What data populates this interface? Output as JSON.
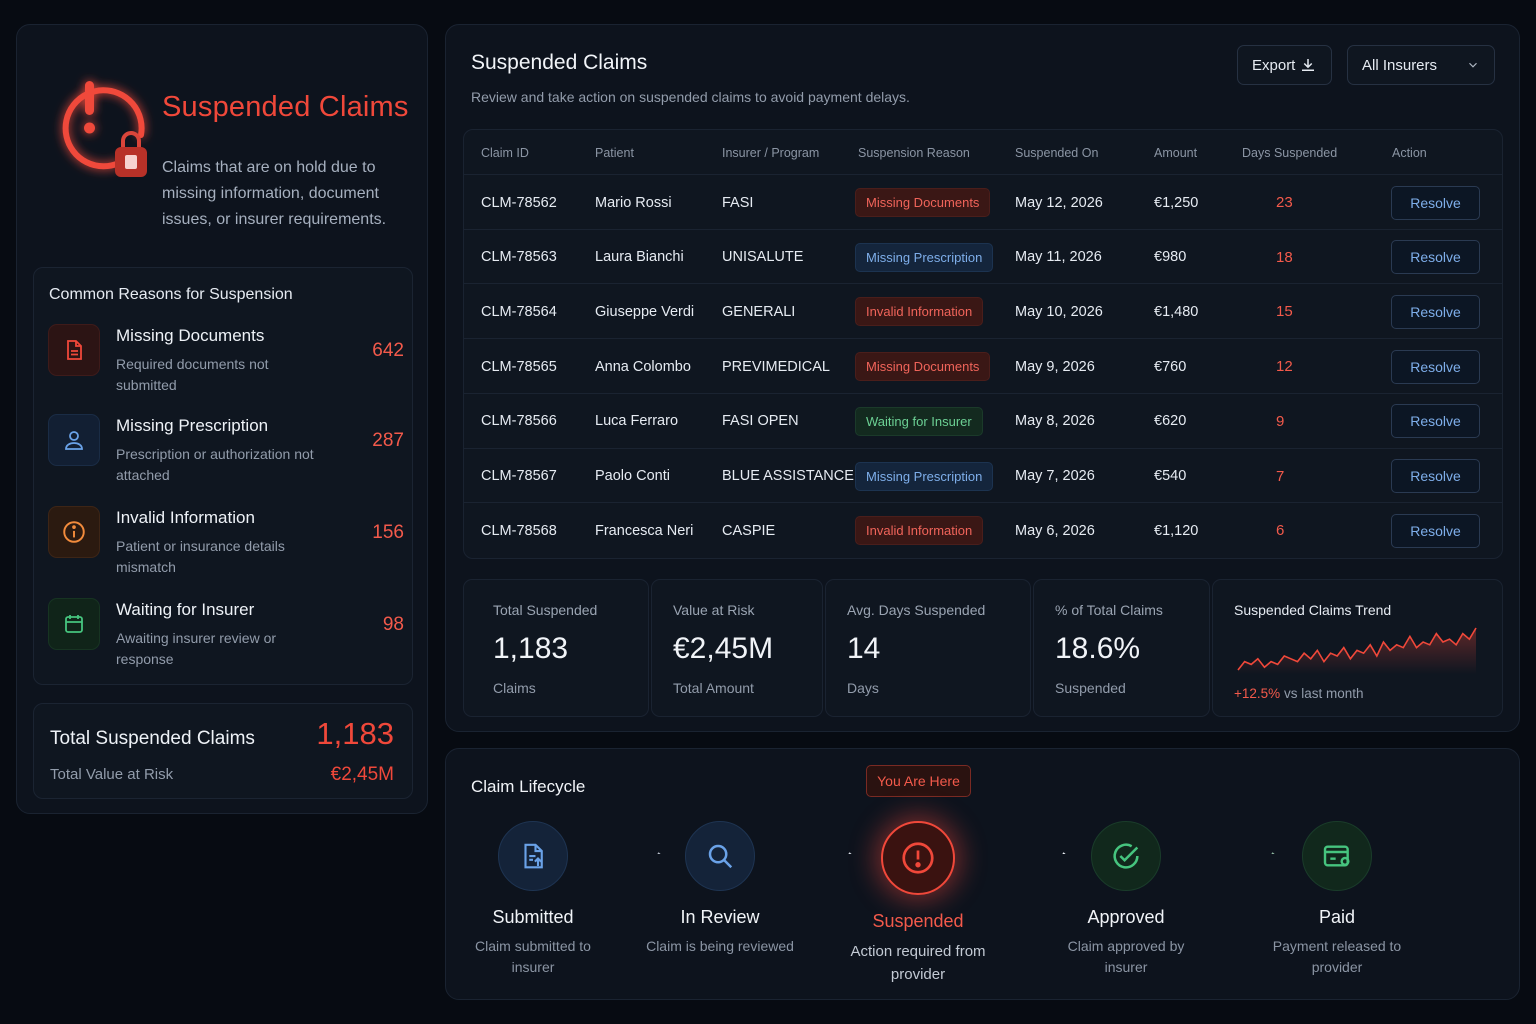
{
  "sidebar": {
    "title": "Suspended Claims",
    "description": "Claims that are on hold due to missing information, document issues, or insurer requirements.",
    "reasons_title": "Common Reasons for Suspension",
    "reasons": [
      {
        "name": "Missing Documents",
        "desc": "Required documents not submitted",
        "count": "642",
        "icon": "document-icon",
        "color": "#f0483a"
      },
      {
        "name": "Missing Prescription",
        "desc": "Prescription or authorization not attached",
        "count": "287",
        "icon": "user-icon",
        "color": "#6aa2e8"
      },
      {
        "name": "Invalid Information",
        "desc": "Patient or insurance details mismatch",
        "count": "156",
        "icon": "info-icon",
        "color": "#f28b3c"
      },
      {
        "name": "Waiting for Insurer",
        "desc": "Awaiting insurer review or response",
        "count": "98",
        "icon": "calendar-icon",
        "color": "#46c47e"
      }
    ],
    "total": {
      "label": "Total Suspended Claims",
      "value": "1,183",
      "value_label": "Total Value at Risk",
      "value_amount": "€2,45M"
    }
  },
  "main": {
    "title": "Suspended Claims",
    "subtitle": "Review and take action on suspended claims to avoid payment delays.",
    "export_label": "Export",
    "insurer_filter": "All Insurers",
    "columns": [
      "Claim ID",
      "Patient",
      "Insurer / Program",
      "Suspension Reason",
      "Suspended On",
      "Amount",
      "Days Suspended",
      "Action"
    ],
    "rows": [
      {
        "id": "CLM-78562",
        "patient": "Mario Rossi",
        "insurer": "FASI",
        "reason": "Missing Documents",
        "reason_type": "red",
        "date": "May 12, 2026",
        "amount": "€1,250",
        "days": "23",
        "action": "Resolve"
      },
      {
        "id": "CLM-78563",
        "patient": "Laura Bianchi",
        "insurer": "UNISALUTE",
        "reason": "Missing Prescription",
        "reason_type": "blue",
        "date": "May 11, 2026",
        "amount": "€980",
        "days": "18",
        "action": "Resolve"
      },
      {
        "id": "CLM-78564",
        "patient": "Giuseppe Verdi",
        "insurer": "GENERALI",
        "reason": "Invalid Information",
        "reason_type": "red",
        "date": "May 10, 2026",
        "amount": "€1,480",
        "days": "15",
        "action": "Resolve"
      },
      {
        "id": "CLM-78565",
        "patient": "Anna Colombo",
        "insurer": "PREVIMEDICAL",
        "reason": "Missing Documents",
        "reason_type": "red",
        "date": "May 9, 2026",
        "amount": "€760",
        "days": "12",
        "action": "Resolve"
      },
      {
        "id": "CLM-78566",
        "patient": "Luca Ferraro",
        "insurer": "FASI OPEN",
        "reason": "Waiting for Insurer",
        "reason_type": "green",
        "date": "May 8, 2026",
        "amount": "€620",
        "days": "9",
        "action": "Resolve"
      },
      {
        "id": "CLM-78567",
        "patient": "Paolo Conti",
        "insurer": "BLUE ASSISTANCE",
        "reason": "Missing Prescription",
        "reason_type": "blue",
        "date": "May 7, 2026",
        "amount": "€540",
        "days": "7",
        "action": "Resolve"
      },
      {
        "id": "CLM-78568",
        "patient": "Francesca Neri",
        "insurer": "CASPIE",
        "reason": "Invalid Information",
        "reason_type": "red",
        "date": "May 6, 2026",
        "amount": "€1,120",
        "days": "6",
        "action": "Resolve"
      }
    ],
    "stats": [
      {
        "label": "Total Suspended",
        "value": "1,183",
        "unit": "Claims"
      },
      {
        "label": "Value at Risk",
        "value": "€2,45M",
        "unit": "Total Amount"
      },
      {
        "label": "Avg. Days Suspended",
        "value": "14",
        "unit": "Days"
      },
      {
        "label": "% of Total Claims",
        "value": "18.6%",
        "unit": "Suspended"
      }
    ],
    "trend": {
      "title": "Suspended Claims Trend",
      "change": "+12.5%",
      "change_suffix": "vs last month",
      "values": [
        2,
        5,
        4,
        6,
        3,
        5,
        4,
        7,
        6,
        5,
        8,
        6,
        9,
        5,
        8,
        7,
        10,
        6,
        9,
        8,
        11,
        7,
        12,
        9,
        11,
        10,
        14,
        10,
        12,
        11,
        15,
        12,
        13,
        11,
        15,
        13,
        17
      ]
    }
  },
  "lifecycle": {
    "title": "Claim Lifecycle",
    "you_are_here": "You Are Here",
    "steps": [
      {
        "name": "Submitted",
        "desc": "Claim submitted to insurer",
        "icon": "document-upload-icon",
        "color": "#6aa2e8"
      },
      {
        "name": "In Review",
        "desc": "Claim is being reviewed",
        "icon": "search-icon",
        "color": "#6aa2e8"
      },
      {
        "name": "Suspended",
        "desc": "Action required from provider",
        "icon": "alert-icon",
        "color": "#f0483a"
      },
      {
        "name": "Approved",
        "desc": "Claim approved by insurer",
        "icon": "check-icon",
        "color": "#46c47e"
      },
      {
        "name": "Paid",
        "desc": "Payment released to provider",
        "icon": "wallet-icon",
        "color": "#46c47e"
      }
    ]
  }
}
